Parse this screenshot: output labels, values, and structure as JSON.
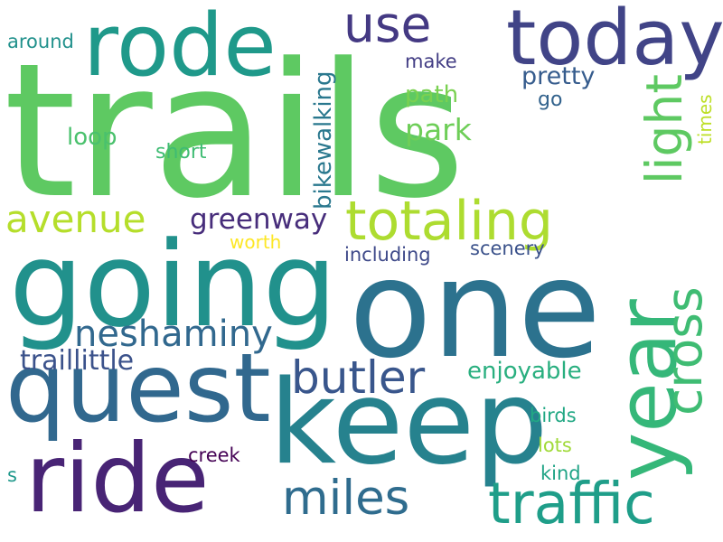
{
  "words": [
    {
      "text": "trails",
      "color": "#5ec962"
    },
    {
      "text": "one",
      "color": "#2c728e"
    },
    {
      "text": "going",
      "color": "#21918c"
    },
    {
      "text": "keep",
      "color": "#26828e"
    },
    {
      "text": "quest",
      "color": "#31688e"
    },
    {
      "text": "ride",
      "color": "#482475"
    },
    {
      "text": "rode",
      "color": "#1f998a"
    },
    {
      "text": "today",
      "color": "#414487"
    },
    {
      "text": "year",
      "color": "#35b779"
    },
    {
      "text": "totaling",
      "color": "#addc30"
    },
    {
      "text": "traffic",
      "color": "#1f9e89"
    },
    {
      "text": "cross",
      "color": "#3fbc73"
    },
    {
      "text": "light",
      "color": "#5ec962"
    },
    {
      "text": "miles",
      "color": "#2f6c8e"
    },
    {
      "text": "butler",
      "color": "#39568c"
    },
    {
      "text": "use",
      "color": "#443983"
    },
    {
      "text": "avenue",
      "color": "#b5de2b"
    },
    {
      "text": "neshaminy",
      "color": "#31688e"
    },
    {
      "text": "greenway",
      "color": "#472d7b"
    },
    {
      "text": "traillittle",
      "color": "#3b528b"
    },
    {
      "text": "enjoyable",
      "color": "#29af7f"
    },
    {
      "text": "bikewalking",
      "color": "#2a788e"
    },
    {
      "text": "park",
      "color": "#6ece58"
    },
    {
      "text": "path",
      "color": "#7ad151"
    },
    {
      "text": "pretty",
      "color": "#365c8d"
    },
    {
      "text": "loop",
      "color": "#4ac16d"
    },
    {
      "text": "short",
      "color": "#3fbc73"
    },
    {
      "text": "make",
      "color": "#433e85"
    },
    {
      "text": "go",
      "color": "#33638d"
    },
    {
      "text": "times",
      "color": "#bddf26"
    },
    {
      "text": "around",
      "color": "#21918c"
    },
    {
      "text": "worth",
      "color": "#fde725"
    },
    {
      "text": "including",
      "color": "#3e4989"
    },
    {
      "text": "scenery",
      "color": "#3b528b"
    },
    {
      "text": "birds",
      "color": "#22a884"
    },
    {
      "text": "lots",
      "color": "#a0da39"
    },
    {
      "text": "kind",
      "color": "#20a486"
    },
    {
      "text": "creek",
      "color": "#440154"
    },
    {
      "text": "s",
      "color": "#1f988b"
    }
  ]
}
